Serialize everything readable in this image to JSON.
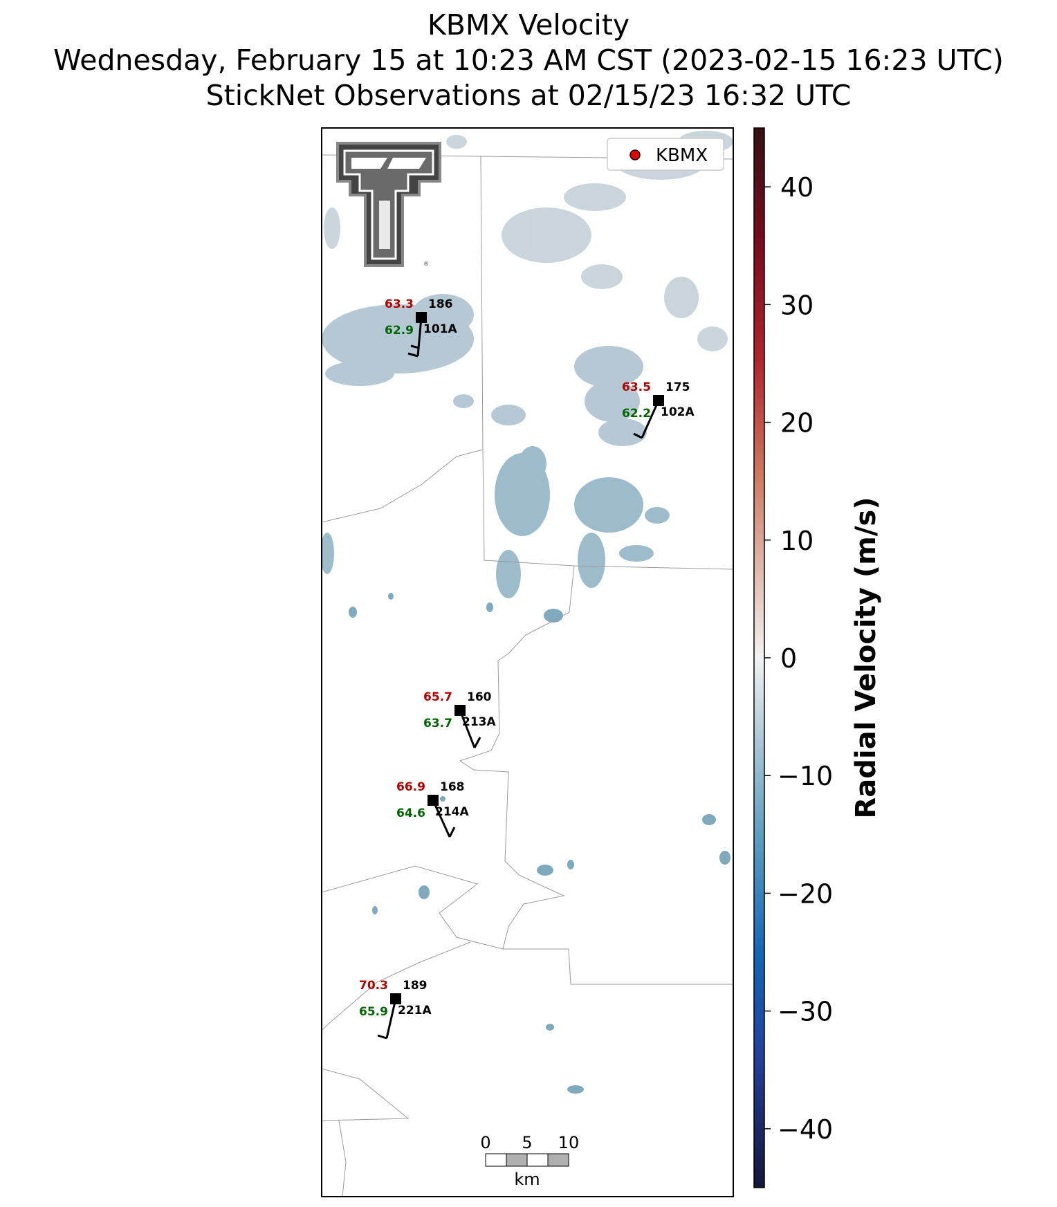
{
  "title": {
    "line1": "KBMX Velocity",
    "line2": "Wednesday, February 15 at 10:23 AM CST (2023-02-15 16:23 UTC)",
    "line3": "StickNet Observations at 02/15/23 16:32 UTC"
  },
  "legend": {
    "label": "KBMX",
    "marker_color": "#e00000"
  },
  "colorbar": {
    "label": "Radial Velocity (m/s)",
    "ticks": [
      "40",
      "30",
      "20",
      "10",
      "0",
      "−10",
      "−20",
      "−30",
      "−40"
    ],
    "range": [
      -45,
      45
    ]
  },
  "scale_bar": {
    "ticks": [
      "0",
      "5",
      "10"
    ],
    "unit": "km"
  },
  "stations": [
    {
      "id": "101A",
      "temp": "63.3",
      "dew": "62.9",
      "pressure": "186"
    },
    {
      "id": "102A",
      "temp": "63.5",
      "dew": "62.2",
      "pressure": "175"
    },
    {
      "id": "213A",
      "temp": "65.7",
      "dew": "63.7",
      "pressure": "160"
    },
    {
      "id": "214A",
      "temp": "66.9",
      "dew": "64.6",
      "pressure": "168"
    },
    {
      "id": "221A",
      "temp": "70.3",
      "dew": "65.9",
      "pressure": "189"
    }
  ],
  "colors": {
    "temp": "#b00000",
    "dew": "#006400",
    "station": "#000000",
    "county_lines": "#999999"
  },
  "logo": {
    "name": "texas-tech-double-t-logo"
  }
}
